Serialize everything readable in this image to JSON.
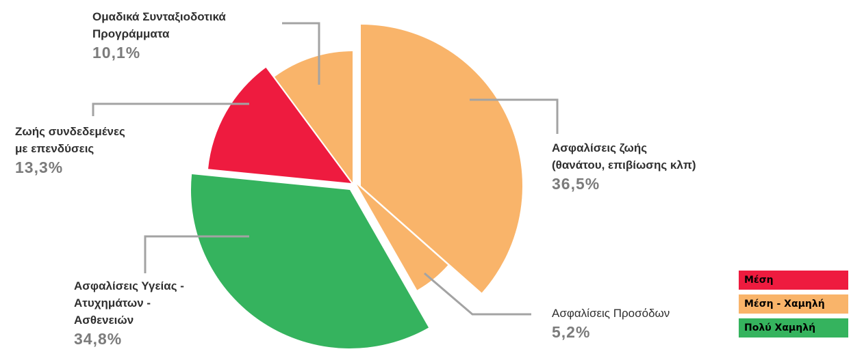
{
  "chart_data": {
    "type": "pie",
    "exploded": true,
    "slices": [
      {
        "label_lines": [
          "Ασφαλίσεις ζωής",
          "(θανάτου, επιβίωσης κλπ)"
        ],
        "value": 36.5,
        "value_label": "36,5%",
        "risk": "medium_low",
        "color": "#F9B46A"
      },
      {
        "label_lines": [
          "Ασφαλίσεις Προσόδων"
        ],
        "value": 5.2,
        "value_label": "5,2%",
        "risk": "medium_low",
        "color": "#F9B46A"
      },
      {
        "label_lines": [
          "Ασφαλίσεις Υγείας -",
          "Ατυχημάτων -",
          "Ασθενειών"
        ],
        "value": 34.8,
        "value_label": "34,8%",
        "risk": "very_low",
        "color": "#35B35E"
      },
      {
        "label_lines": [
          "Ζωής συνδεδεμένες",
          "με επενδύσεις"
        ],
        "value": 13.3,
        "value_label": "13,3%",
        "risk": "medium",
        "color": "#EE1B3F"
      },
      {
        "label_lines": [
          "Ομαδικά Συνταξιοδοτικά",
          "Προγράμματα"
        ],
        "value": 10.1,
        "value_label": "10,1%",
        "risk": "medium_low",
        "color": "#F9B46A"
      }
    ],
    "legend": [
      {
        "key": "medium",
        "label": "Μέση",
        "color": "#EE1B3F"
      },
      {
        "key": "medium_low",
        "label": "Μέση - Χαμηλή",
        "color": "#F9B46A"
      },
      {
        "key": "very_low",
        "label": "Πολύ Χαμηλή",
        "color": "#35B35E"
      }
    ],
    "legend_position": "bottom-right"
  }
}
